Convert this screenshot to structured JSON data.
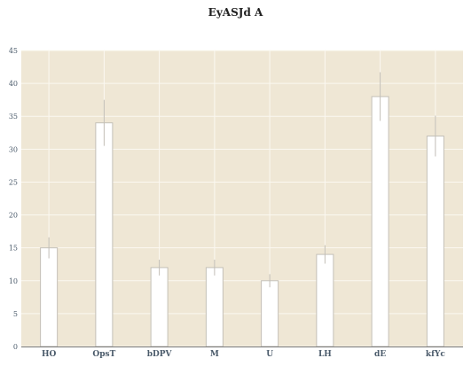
{
  "chart_data": {
    "type": "bar",
    "title": "EyASJd  A",
    "xlabel": "",
    "ylabel": "",
    "categories": [
      "HO",
      "OpsT",
      "bDPV",
      "M",
      "U",
      "LH",
      "dE",
      "kfYc"
    ],
    "values": [
      15,
      34,
      12,
      12,
      10,
      14,
      38,
      32
    ],
    "errors": [
      1.6,
      3.5,
      1.2,
      1.2,
      1.0,
      1.4,
      3.7,
      3.1
    ],
    "ylim": [
      0,
      45
    ],
    "yticks": [
      0,
      5,
      10,
      15,
      20,
      25,
      30,
      35,
      40,
      45
    ],
    "grid": true,
    "colors": {
      "plot_background": "#efe7d5",
      "grid": "#fbf8f1",
      "bar_fill": "#ffffff",
      "bar_edge": "#c4c0b8",
      "error_bar": "#c2beb6",
      "axis_line": "#777777"
    }
  }
}
